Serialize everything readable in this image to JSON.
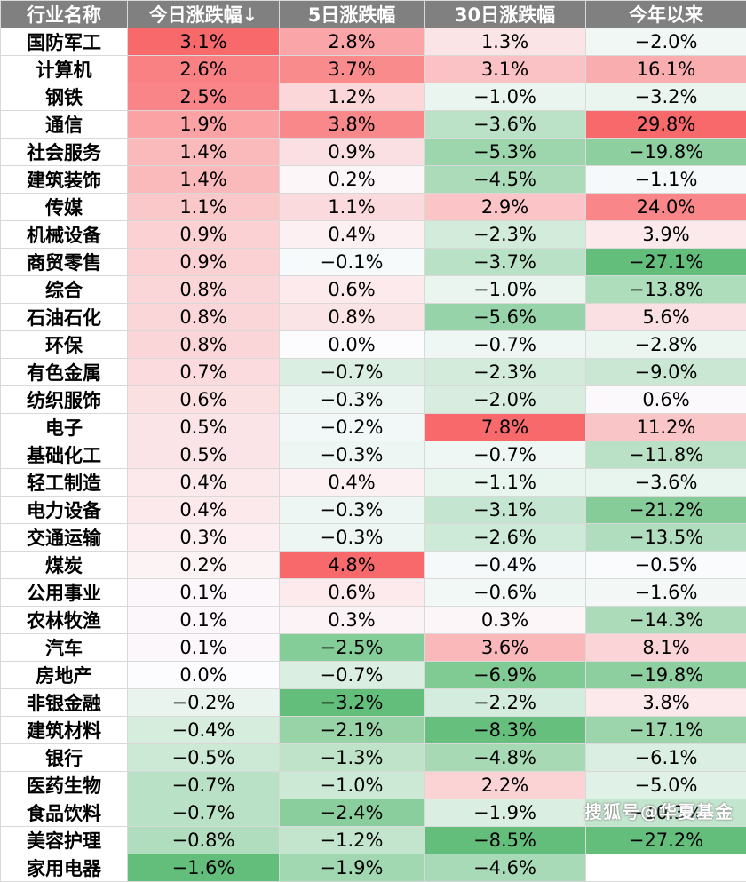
{
  "headers": [
    "行业名称",
    "今日涨跌幅↓",
    "5日涨跌幅",
    "30日涨跌幅",
    "今年以来"
  ],
  "rows": [
    {
      "name": "国防军工",
      "d1": "3.1%",
      "d5": "2.8%",
      "d30": "1.3%",
      "ytd": "−2.0%"
    },
    {
      "name": "计算机",
      "d1": "2.6%",
      "d5": "3.7%",
      "d30": "3.1%",
      "ytd": "16.1%"
    },
    {
      "name": "钢铁",
      "d1": "2.5%",
      "d5": "1.2%",
      "d30": "−1.0%",
      "ytd": "−3.2%"
    },
    {
      "name": "通信",
      "d1": "1.9%",
      "d5": "3.8%",
      "d30": "−3.6%",
      "ytd": "29.8%"
    },
    {
      "name": "社会服务",
      "d1": "1.4%",
      "d5": "0.9%",
      "d30": "−5.3%",
      "ytd": "−19.8%"
    },
    {
      "name": "建筑装饰",
      "d1": "1.4%",
      "d5": "0.2%",
      "d30": "−4.5%",
      "ytd": "−1.1%"
    },
    {
      "name": "传媒",
      "d1": "1.1%",
      "d5": "1.1%",
      "d30": "2.9%",
      "ytd": "24.0%"
    },
    {
      "name": "机械设备",
      "d1": "0.9%",
      "d5": "0.4%",
      "d30": "−2.3%",
      "ytd": "3.9%"
    },
    {
      "name": "商贸零售",
      "d1": "0.9%",
      "d5": "−0.1%",
      "d30": "−3.7%",
      "ytd": "−27.1%"
    },
    {
      "name": "综合",
      "d1": "0.8%",
      "d5": "0.6%",
      "d30": "−1.0%",
      "ytd": "−13.8%"
    },
    {
      "name": "石油石化",
      "d1": "0.8%",
      "d5": "0.8%",
      "d30": "−5.6%",
      "ytd": "5.6%"
    },
    {
      "name": "环保",
      "d1": "0.8%",
      "d5": "0.0%",
      "d30": "−0.7%",
      "ytd": "−2.8%"
    },
    {
      "name": "有色金属",
      "d1": "0.7%",
      "d5": "−0.7%",
      "d30": "−2.3%",
      "ytd": "−9.0%"
    },
    {
      "name": "纺织服饰",
      "d1": "0.6%",
      "d5": "−0.3%",
      "d30": "−2.0%",
      "ytd": "0.6%"
    },
    {
      "name": "电子",
      "d1": "0.5%",
      "d5": "−0.2%",
      "d30": "7.8%",
      "ytd": "11.2%"
    },
    {
      "name": "基础化工",
      "d1": "0.5%",
      "d5": "−0.3%",
      "d30": "−0.7%",
      "ytd": "−11.8%"
    },
    {
      "name": "轻工制造",
      "d1": "0.4%",
      "d5": "0.4%",
      "d30": "−1.1%",
      "ytd": "−3.6%"
    },
    {
      "name": "电力设备",
      "d1": "0.4%",
      "d5": "−0.3%",
      "d30": "−3.1%",
      "ytd": "−21.2%"
    },
    {
      "name": "交通运输",
      "d1": "0.3%",
      "d5": "−0.3%",
      "d30": "−2.6%",
      "ytd": "−13.5%"
    },
    {
      "name": "煤炭",
      "d1": "0.2%",
      "d5": "4.8%",
      "d30": "−0.4%",
      "ytd": "−0.5%"
    },
    {
      "name": "公用事业",
      "d1": "0.1%",
      "d5": "0.6%",
      "d30": "−0.6%",
      "ytd": "−1.6%"
    },
    {
      "name": "农林牧渔",
      "d1": "0.1%",
      "d5": "0.3%",
      "d30": "0.3%",
      "ytd": "−14.3%"
    },
    {
      "name": "汽车",
      "d1": "0.1%",
      "d5": "−2.5%",
      "d30": "3.6%",
      "ytd": "8.1%"
    },
    {
      "name": "房地产",
      "d1": "0.0%",
      "d5": "−0.7%",
      "d30": "−6.9%",
      "ytd": "−19.8%"
    },
    {
      "name": "非银金融",
      "d1": "−0.2%",
      "d5": "−3.2%",
      "d30": "−2.2%",
      "ytd": "3.8%"
    },
    {
      "name": "建筑材料",
      "d1": "−0.4%",
      "d5": "−2.1%",
      "d30": "−8.3%",
      "ytd": "−17.1%"
    },
    {
      "name": "银行",
      "d1": "−0.5%",
      "d5": "−1.3%",
      "d30": "−4.8%",
      "ytd": "−6.1%"
    },
    {
      "name": "医药生物",
      "d1": "−0.7%",
      "d5": "−1.0%",
      "d30": "2.2%",
      "ytd": "−5.0%"
    },
    {
      "name": "食品饮料",
      "d1": "−0.7%",
      "d5": "−2.4%",
      "d30": "−1.9%",
      "ytd": "−10.3%"
    },
    {
      "name": "美容护理",
      "d1": "−0.8%",
      "d5": "−1.2%",
      "d30": "−8.5%",
      "ytd": "−27.2%"
    },
    {
      "name": "家用电器",
      "d1": "−1.6%",
      "d5": "−1.9%",
      "d30": "−4.6%",
      "ytd": ""
    }
  ],
  "watermark": "搜狐号@华夏基金",
  "colors": {
    "header_bg": "#808080",
    "positive_max": "#f8696b",
    "negative_max": "#63be7b",
    "neutral": "#fcfcff"
  }
}
